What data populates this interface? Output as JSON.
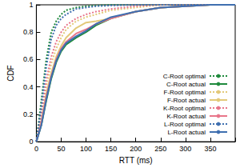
{
  "chart_data": {
    "type": "line",
    "x_label": "RTT (ms)",
    "y_label": "CDF",
    "x": [
      0,
      10,
      20,
      30,
      40,
      50,
      60,
      80,
      100,
      120,
      150,
      200,
      250,
      300,
      350,
      400
    ],
    "xlim": [
      0,
      400
    ],
    "xticks": [
      0,
      50,
      100,
      150,
      200,
      250,
      300,
      350
    ],
    "ylim": [
      0,
      1
    ],
    "yticks": [
      0,
      0.2,
      0.4,
      0.6,
      0.8,
      1
    ],
    "grid": false,
    "legend": "lower right",
    "series": [
      {
        "name": "C-Root optimal",
        "color": "#1f8a3c",
        "line_style": "dotted",
        "values": [
          0,
          0.3,
          0.6,
          0.8,
          0.88,
          0.93,
          0.96,
          0.98,
          0.99,
          0.995,
          1,
          1,
          1,
          1,
          1,
          1
        ]
      },
      {
        "name": "C-Root actual",
        "color": "#1f8a3c",
        "line_style": "solid",
        "values": [
          0,
          0.12,
          0.3,
          0.46,
          0.58,
          0.66,
          0.71,
          0.76,
          0.8,
          0.85,
          0.9,
          0.95,
          0.98,
          0.99,
          1,
          1
        ]
      },
      {
        "name": "F-Root optimal",
        "color": "#e3c97a",
        "line_style": "dotted",
        "values": [
          0,
          0.18,
          0.4,
          0.57,
          0.68,
          0.76,
          0.82,
          0.88,
          0.91,
          0.93,
          0.96,
          0.98,
          1,
          1,
          1,
          1
        ]
      },
      {
        "name": "F-Root actual",
        "color": "#e3c97a",
        "line_style": "solid",
        "values": [
          0,
          0.15,
          0.35,
          0.5,
          0.62,
          0.7,
          0.76,
          0.83,
          0.87,
          0.88,
          0.9,
          0.95,
          0.98,
          0.99,
          1,
          1
        ]
      },
      {
        "name": "K-Root optimal",
        "color": "#e8758a",
        "line_style": "dotted",
        "values": [
          0,
          0.2,
          0.45,
          0.62,
          0.73,
          0.8,
          0.85,
          0.9,
          0.93,
          0.95,
          0.97,
          0.99,
          1,
          1,
          1,
          1
        ]
      },
      {
        "name": "K-Root actual",
        "color": "#e8758a",
        "line_style": "solid",
        "values": [
          0,
          0.13,
          0.33,
          0.48,
          0.6,
          0.68,
          0.73,
          0.79,
          0.82,
          0.86,
          0.9,
          0.95,
          0.98,
          0.99,
          1,
          1
        ]
      },
      {
        "name": "L-Root optimal",
        "color": "#3f6fb0",
        "line_style": "dotted",
        "values": [
          0,
          0.25,
          0.55,
          0.75,
          0.85,
          0.9,
          0.93,
          0.97,
          0.98,
          0.99,
          0.995,
          1,
          1,
          1,
          1,
          1
        ]
      },
      {
        "name": "L-Root actual",
        "color": "#3f6fb0",
        "line_style": "solid",
        "values": [
          0,
          0.12,
          0.31,
          0.47,
          0.59,
          0.67,
          0.72,
          0.77,
          0.81,
          0.86,
          0.91,
          0.95,
          0.98,
          0.99,
          1,
          1
        ]
      }
    ]
  }
}
